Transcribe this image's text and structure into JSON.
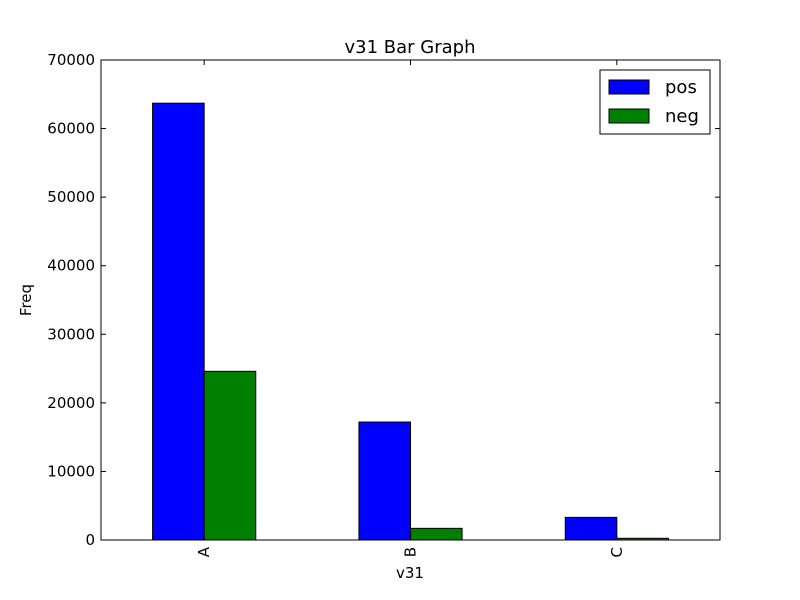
{
  "chart_data": {
    "type": "bar",
    "title": "v31 Bar Graph",
    "xlabel": "v31",
    "ylabel": "Freq",
    "categories": [
      "A",
      "B",
      "C"
    ],
    "series": [
      {
        "name": "pos",
        "values": [
          63700,
          17200,
          3300
        ],
        "color": "#0000ff"
      },
      {
        "name": "neg",
        "values": [
          24600,
          1700,
          250
        ],
        "color": "#008000"
      }
    ],
    "ylim": [
      0,
      70000
    ],
    "yticks": [
      0,
      10000,
      20000,
      30000,
      40000,
      50000,
      60000,
      70000
    ],
    "ytick_labels": [
      "0",
      "10000",
      "20000",
      "30000",
      "40000",
      "50000",
      "60000",
      "70000"
    ],
    "legend_position": "top-right",
    "grid": false
  }
}
